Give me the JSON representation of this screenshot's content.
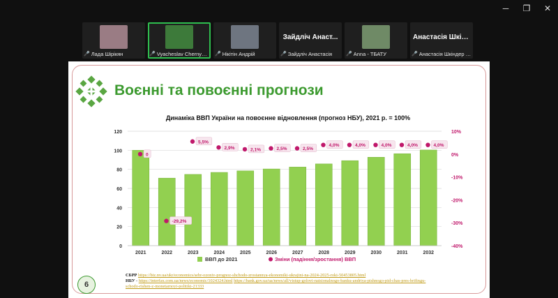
{
  "window_controls": {
    "minimize": "─",
    "maximize": "❐",
    "close": "✕"
  },
  "participants": [
    {
      "name": "Лада Шірікян",
      "video": true,
      "video_color": "#9a7c84"
    },
    {
      "name": "Vyacheslav Chernyshov...",
      "video": true,
      "video_color": "#3d7a3a",
      "active": true
    },
    {
      "name": "Нікітін Андрій",
      "video": true,
      "video_color": "#6e7580"
    },
    {
      "name": "Зайдліч Анастасія",
      "video": false,
      "big_name": "Зайдліч Анаст..."
    },
    {
      "name": "Anna - ТБАТУ",
      "video": true,
      "video_color": "#6f8a66"
    },
    {
      "name": "Анастасія Шкіндер З...",
      "video": false,
      "big_name": "Анастасія Шкін..."
    }
  ],
  "slide": {
    "title": "Воєнні та повоєнні прогнози",
    "page_number": "6",
    "sources": {
      "l1_label": "СБРР",
      "l1_link": "https://biz.nv.ua/ukr/economics/sebr-ozoniv-prognoz-shchodo-zrostannya-ekonomiki-ukrajini-na-2024-2025-roki-50453805.html",
      "l2_label": "НБУ",
      "l2_link1": "https://interfax.com.ua/news/economic/1024324.html",
      "l2_link2": "https://bank.gov.ua/ua/news/all/vistup-golovi-natsionalnogo-banku-andriya-pishnogo-pid-chas-pres-brifingu-schodo-rishen-z-monetarnoyi-politiki-21333"
    }
  },
  "chart_data": {
    "type": "bar",
    "title": "Динаміка ВВП України на повоєнне відновлення (прогноз НБУ), 2021 р. = 100%",
    "categories": [
      "2021",
      "2022",
      "2023",
      "2024",
      "2025",
      "2026",
      "2027",
      "2028",
      "2029",
      "2030",
      "2031",
      "2032"
    ],
    "series": [
      {
        "name": "ВВП до 2021",
        "type": "bar",
        "axis": "left",
        "color": "#92d050",
        "values": [
          100,
          70.8,
          74.7,
          76.8,
          78.4,
          80.4,
          82.4,
          85.7,
          89.1,
          92.7,
          96.4,
          100.3
        ]
      },
      {
        "name": "Зміни (падіння/зростання) ВВП",
        "type": "scatter",
        "axis": "right",
        "color": "#c0186b",
        "values": [
          0,
          -29.2,
          5.5,
          2.9,
          2.1,
          2.5,
          2.5,
          4.0,
          4.0,
          4.0,
          4.0,
          4.0
        ],
        "labels": [
          "0",
          "-29,2%",
          "5,5%",
          "2,9%",
          "2,1%",
          "2,5%",
          "2,5%",
          "4,0%",
          "4,0%",
          "4,0%",
          "4,0%",
          "4,0%"
        ]
      }
    ],
    "ylim_left": [
      0,
      120
    ],
    "yticks_left": [
      "0",
      "20",
      "40",
      "60",
      "80",
      "100",
      "120"
    ],
    "ylim_right": [
      -40,
      10
    ],
    "yticks_right": [
      "-40%",
      "-30%",
      "-20%",
      "-10%",
      "0%",
      "10%"
    ],
    "grid": true,
    "legend_position": "bottom"
  }
}
